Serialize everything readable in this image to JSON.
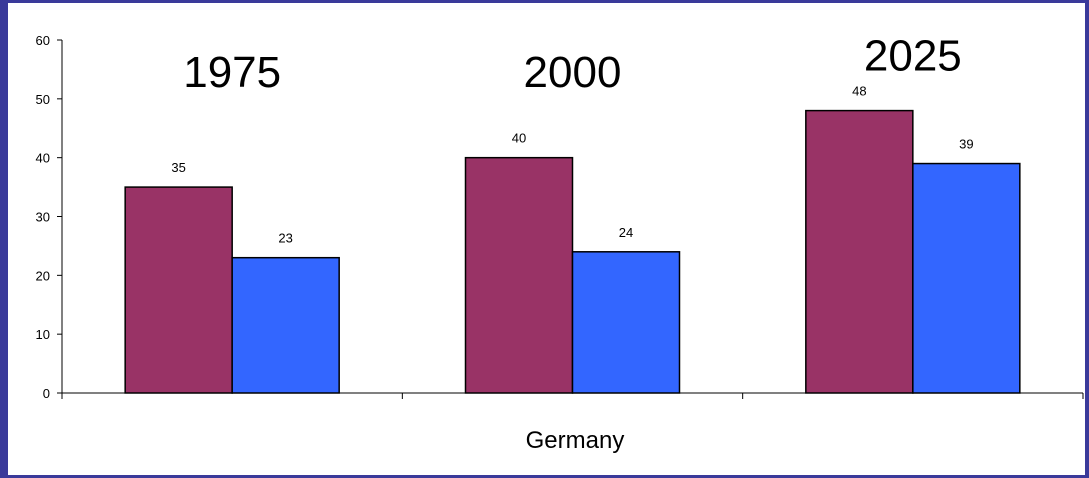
{
  "chart_data": {
    "type": "bar",
    "categories": [
      "1975",
      "2000",
      "2025"
    ],
    "series": [
      {
        "values": [
          35,
          40,
          48
        ],
        "color": "#993366"
      },
      {
        "values": [
          23,
          24,
          39
        ],
        "color": "#3366ff"
      }
    ],
    "xlabel": "Germany",
    "ylim": [
      0,
      60
    ],
    "yticks": [
      0,
      10,
      20,
      30,
      40,
      50,
      60
    ],
    "grid": false,
    "legend": "none"
  }
}
